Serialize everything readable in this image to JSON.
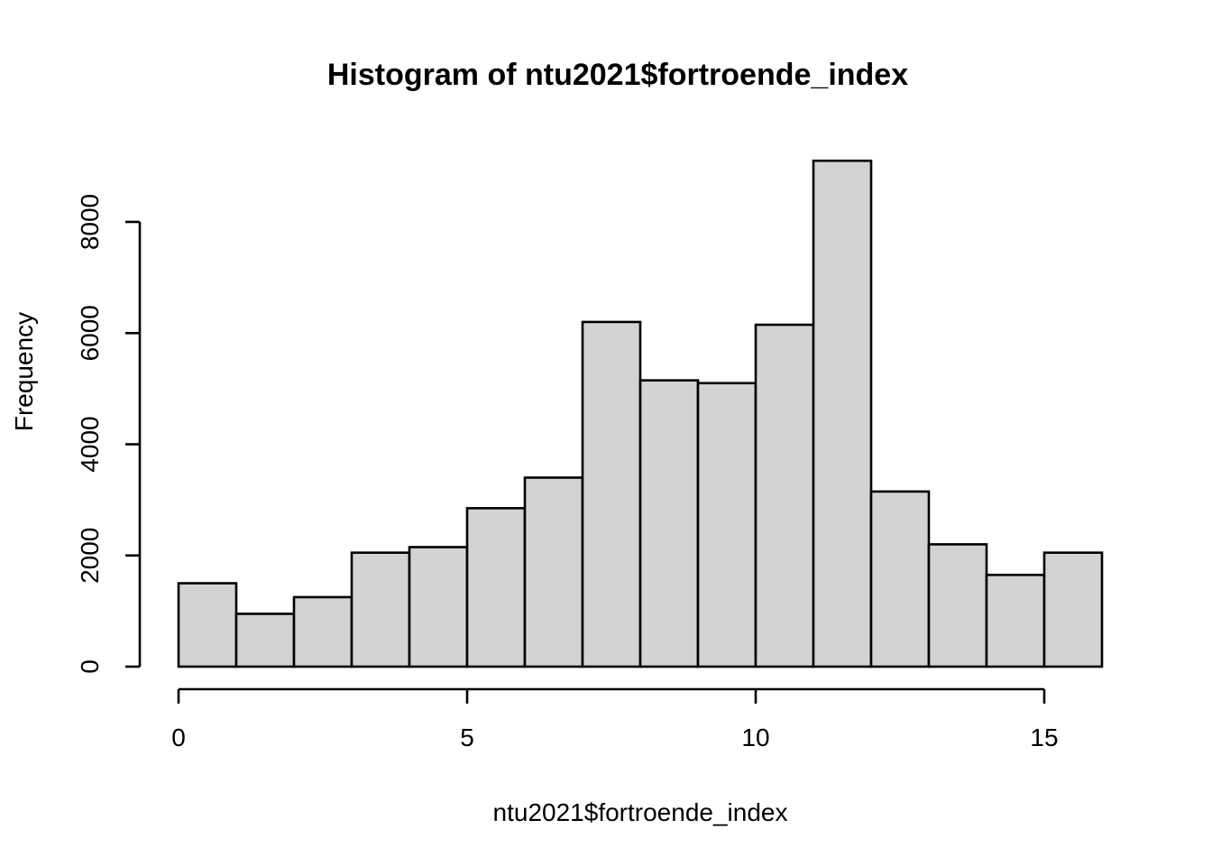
{
  "figure": {
    "background_color": "#ffffff",
    "foreground_color": "#000000"
  },
  "chart_data": {
    "type": "bar",
    "subtype": "histogram",
    "title": "Histogram of ntu2021$fortroende_index",
    "xlabel": "ntu2021$fortroende_index",
    "ylabel": "Frequency",
    "bin_edges": [
      0,
      1,
      2,
      3,
      4,
      5,
      6,
      7,
      8,
      9,
      10,
      11,
      12,
      13,
      14,
      15,
      16
    ],
    "values": [
      1500,
      950,
      1250,
      2050,
      2150,
      2850,
      3400,
      6200,
      5150,
      5100,
      6150,
      9100,
      3150,
      2200,
      1650,
      2050
    ],
    "x_ticks": [
      0,
      5,
      10,
      15
    ],
    "y_ticks": [
      0,
      2000,
      4000,
      6000,
      8000
    ],
    "xlim": [
      0,
      16
    ],
    "ylim": [
      0,
      9100
    ],
    "grid": false,
    "legend_position": "none",
    "bar_fill_color": "#d3d3d3",
    "bar_stroke_color": "#000000"
  }
}
